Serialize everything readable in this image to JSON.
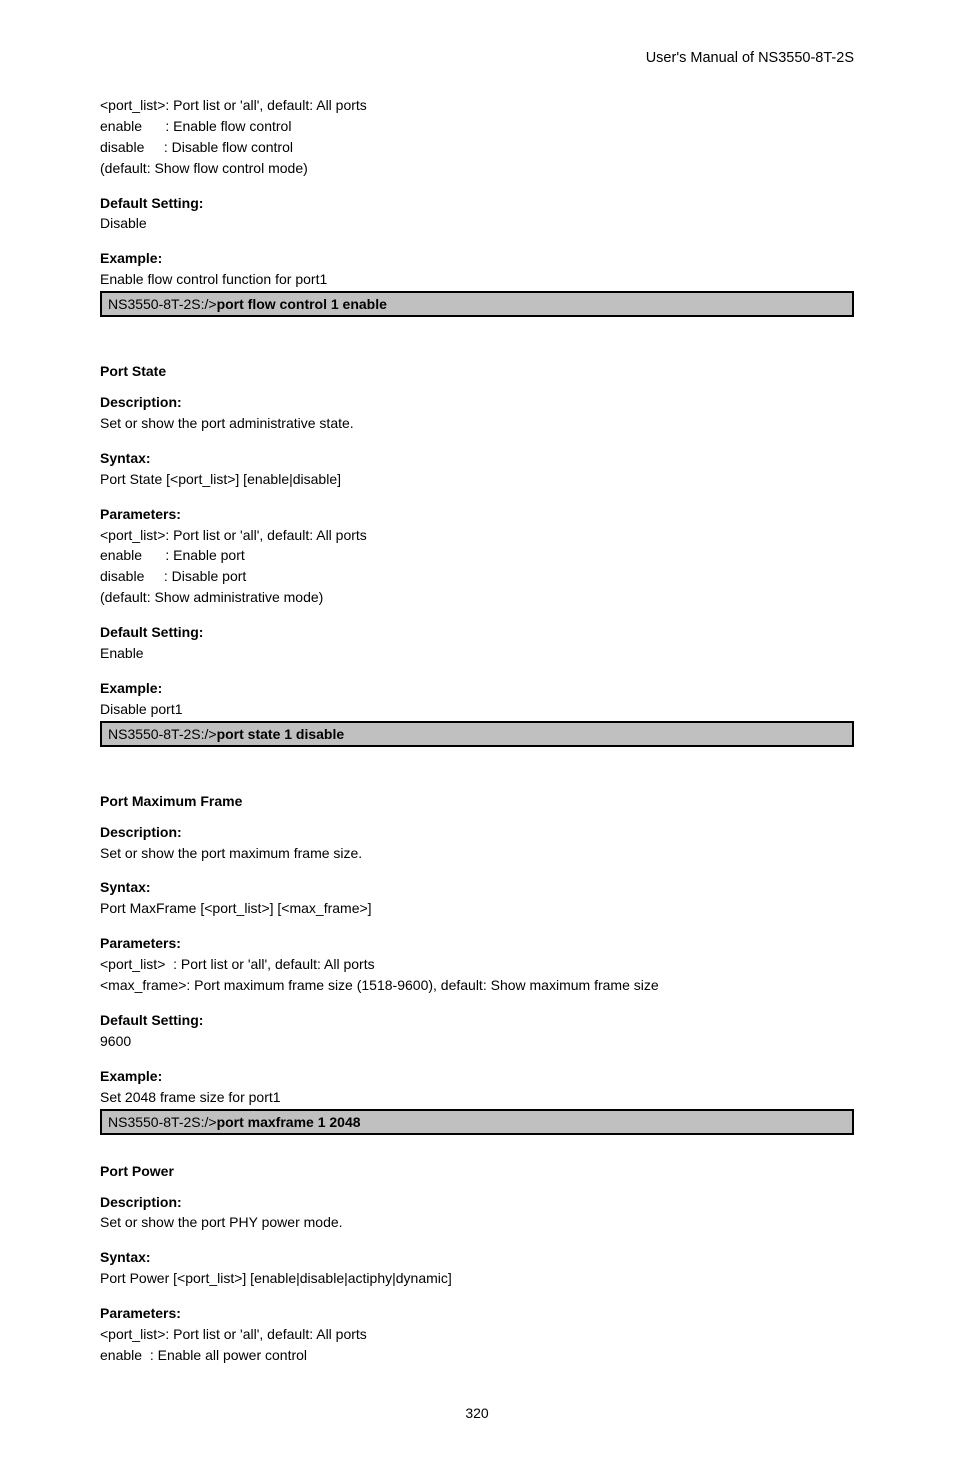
{
  "header": {
    "manual_title": "User's  Manual  of  NS3550-8T-2S"
  },
  "sec_flow": {
    "param_portlist": "<port_list>: Port list or 'all', default: All ports",
    "param_enable": "enable      : Enable flow control",
    "param_disable": "disable     : Disable flow control",
    "default_note": "(default: Show flow control mode)",
    "default_label": "Default Setting:",
    "default_value": "Disable",
    "example_label": "Example:",
    "example_text": "Enable flow control function for port1",
    "cmd_prefix": "NS3550-8T-2S:/>",
    "cmd_value": "port flow control 1 enable"
  },
  "sec_state": {
    "title": "Port State",
    "desc_label": "Description:",
    "desc_text": "Set or show the port administrative state.",
    "syntax_label": "Syntax:",
    "syntax_text": "Port State [<port_list>] [enable|disable]",
    "params_label": "Parameters:",
    "param_portlist": "<port_list>: Port list or 'all', default: All ports",
    "param_enable": "enable      : Enable port",
    "param_disable": "disable     : Disable port",
    "default_note": "(default: Show administrative mode)",
    "default_label": "Default Setting:",
    "default_value": "Enable",
    "example_label": "Example:",
    "example_text": "Disable port1",
    "cmd_prefix": "NS3550-8T-2S:/>",
    "cmd_value": "port state 1 disable"
  },
  "sec_maxframe": {
    "title": "Port Maximum Frame",
    "desc_label": "Description:",
    "desc_text": "Set or show the port maximum frame size.",
    "syntax_label": "Syntax:",
    "syntax_text": "Port MaxFrame [<port_list>] [<max_frame>]",
    "params_label": "Parameters:",
    "param_portlist": "<port_list>  : Port list or 'all', default: All ports",
    "param_maxframe": "<max_frame>: Port maximum frame size (1518-9600), default: Show maximum frame size",
    "default_label": "Default Setting:",
    "default_value": "9600",
    "example_label": "Example:",
    "example_text": "Set 2048 frame size for port1",
    "cmd_prefix": "NS3550-8T-2S:/>",
    "cmd_value": "port maxframe 1 2048"
  },
  "sec_power": {
    "title": "Port Power",
    "desc_label": "Description:",
    "desc_text": "Set or show the port PHY power mode.",
    "syntax_label": "Syntax:",
    "syntax_text": "Port Power [<port_list>] [enable|disable|actiphy|dynamic]",
    "params_label": "Parameters:",
    "param_portlist": "<port_list>: Port list or 'all', default: All ports",
    "param_enable": "enable  : Enable all power control"
  },
  "page_number": "320"
}
